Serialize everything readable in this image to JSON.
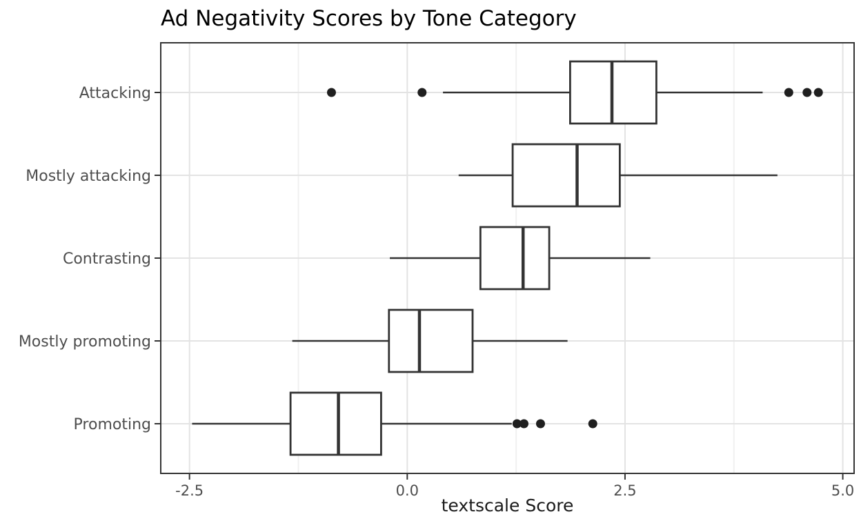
{
  "chart_data": {
    "type": "boxplot",
    "orientation": "horizontal",
    "title": "Ad Negativity Scores by Tone Category",
    "xlabel": "textscale Score",
    "ylabel": "",
    "xlim": [
      -2.83,
      5.13
    ],
    "x_major_ticks": [
      -2.5,
      0.0,
      2.5,
      5.0
    ],
    "x_tick_labels": [
      "-2.5",
      "0.0",
      "2.5",
      "5.0"
    ],
    "x_minor_gridlines": [
      -1.25,
      1.25,
      3.75
    ],
    "grid": true,
    "legend": "none",
    "categories": [
      "Attacking",
      "Mostly attacking",
      "Contrasting",
      "Mostly promoting",
      "Promoting"
    ],
    "series": [
      {
        "category": "Attacking",
        "whisker_low": 0.41,
        "q1": 1.87,
        "median": 2.35,
        "q3": 2.86,
        "whisker_high": 4.08,
        "outliers": [
          -0.87,
          0.17,
          4.38,
          4.59,
          4.72
        ]
      },
      {
        "category": "Mostly attacking",
        "whisker_low": 0.59,
        "q1": 1.21,
        "median": 1.95,
        "q3": 2.44,
        "whisker_high": 4.25,
        "outliers": []
      },
      {
        "category": "Contrasting",
        "whisker_low": -0.2,
        "q1": 0.84,
        "median": 1.33,
        "q3": 1.63,
        "whisker_high": 2.79,
        "outliers": []
      },
      {
        "category": "Mostly promoting",
        "whisker_low": -1.32,
        "q1": -0.21,
        "median": 0.14,
        "q3": 0.75,
        "whisker_high": 1.84,
        "outliers": []
      },
      {
        "category": "Promoting",
        "whisker_low": -2.47,
        "q1": -1.34,
        "median": -0.79,
        "q3": -0.3,
        "whisker_high": 1.2,
        "outliers": [
          1.26,
          1.34,
          1.53,
          2.13
        ]
      }
    ],
    "colors": {
      "panel_background": "#ffffff",
      "panel_border": "#333333",
      "grid_major": "#e3e3e3",
      "grid_minor": "#f0f0f0",
      "box_fill": "#ffffff",
      "box_stroke": "#333333",
      "median_stroke": "#333333",
      "whisker_stroke": "#333333",
      "outlier_fill": "#1f1f1f",
      "tick_mark": "#333333",
      "tick_label": "#4d4d4d",
      "title_color": "#000000",
      "axis_title_color": "#1a1a1a"
    }
  }
}
